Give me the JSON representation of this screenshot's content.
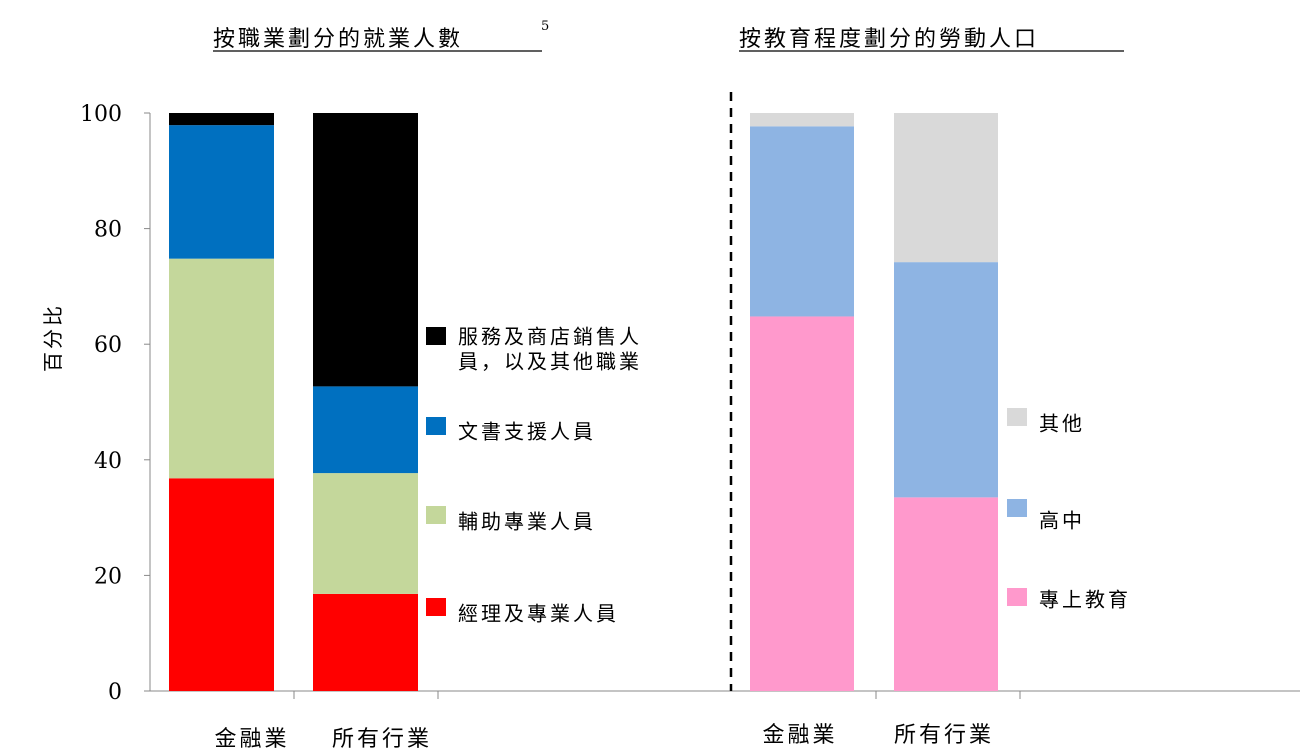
{
  "chart_data": [
    {
      "type": "bar",
      "stacked": true,
      "title": "按職業劃分的就業人數",
      "title_superscript": "5",
      "ylabel": "百分比",
      "ylim": [
        0,
        100
      ],
      "yticks": [
        "0",
        "20",
        "40",
        "60",
        "80",
        "100"
      ],
      "categories": [
        "金融業",
        "所有行業"
      ],
      "series": [
        {
          "name": "經理及專業人員",
          "color": "#ff0000",
          "values": [
            36.8,
            16.8
          ]
        },
        {
          "name": "輔助專業人員",
          "color": "#c4d79b",
          "values": [
            38.0,
            20.9
          ]
        },
        {
          "name": "文書支援人員",
          "color": "#0070c0",
          "values": [
            23.1,
            15.0
          ]
        },
        {
          "name": "服務及商店銷售人員，以及其他職業",
          "color": "#000000",
          "values": [
            2.1,
            47.3
          ]
        }
      ],
      "legend_lines": [
        [
          "經理及專業人員"
        ],
        [
          "輔助專業人員"
        ],
        [
          "文書支援人員"
        ],
        [
          "服務及商店銷售人",
          "員，以及其他職業"
        ]
      ]
    },
    {
      "type": "bar",
      "stacked": true,
      "title": "按教育程度劃分的勞動人口",
      "ylim": [
        0,
        100
      ],
      "categories": [
        "金融業",
        "所有行業"
      ],
      "series": [
        {
          "name": "專上教育",
          "color": "#ff99cc",
          "values": [
            64.8,
            33.5
          ]
        },
        {
          "name": "高中",
          "color": "#8eb4e3",
          "values": [
            32.9,
            40.7
          ]
        },
        {
          "name": "其他",
          "color": "#d9d9d9",
          "values": [
            2.3,
            25.8
          ]
        }
      ],
      "legend_lines": [
        [
          "專上教育"
        ],
        [
          "高中"
        ],
        [
          "其他"
        ]
      ]
    }
  ]
}
